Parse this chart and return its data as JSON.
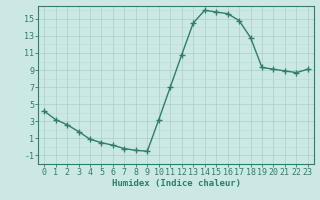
{
  "x": [
    0,
    1,
    2,
    3,
    4,
    5,
    6,
    7,
    8,
    9,
    10,
    11,
    12,
    13,
    14,
    15,
    16,
    17,
    18,
    19,
    20,
    21,
    22,
    23
  ],
  "y": [
    4.2,
    3.2,
    2.6,
    1.8,
    0.9,
    0.5,
    0.2,
    -0.2,
    -0.4,
    -0.5,
    3.2,
    7.0,
    10.8,
    14.5,
    16.0,
    15.8,
    15.6,
    14.8,
    12.8,
    9.3,
    9.1,
    8.9,
    8.7,
    9.1
  ],
  "line_color": "#2e7d6e",
  "marker": "+",
  "marker_size": 4,
  "marker_lw": 1.0,
  "bg_color": "#cce8e4",
  "grid_major_color": "#aacfca",
  "grid_minor_color": "#bddbd7",
  "axis_color": "#2e7d6e",
  "tick_color": "#2e7d6e",
  "xlabel": "Humidex (Indice chaleur)",
  "xlim": [
    -0.5,
    23.5
  ],
  "ylim": [
    -2.0,
    16.5
  ],
  "yticks": [
    -1,
    1,
    3,
    5,
    7,
    9,
    11,
    13,
    15
  ],
  "xticks": [
    0,
    1,
    2,
    3,
    4,
    5,
    6,
    7,
    8,
    9,
    10,
    11,
    12,
    13,
    14,
    15,
    16,
    17,
    18,
    19,
    20,
    21,
    22,
    23
  ],
  "xlabel_fontsize": 6.5,
  "tick_fontsize": 6.0,
  "linewidth": 1.0
}
